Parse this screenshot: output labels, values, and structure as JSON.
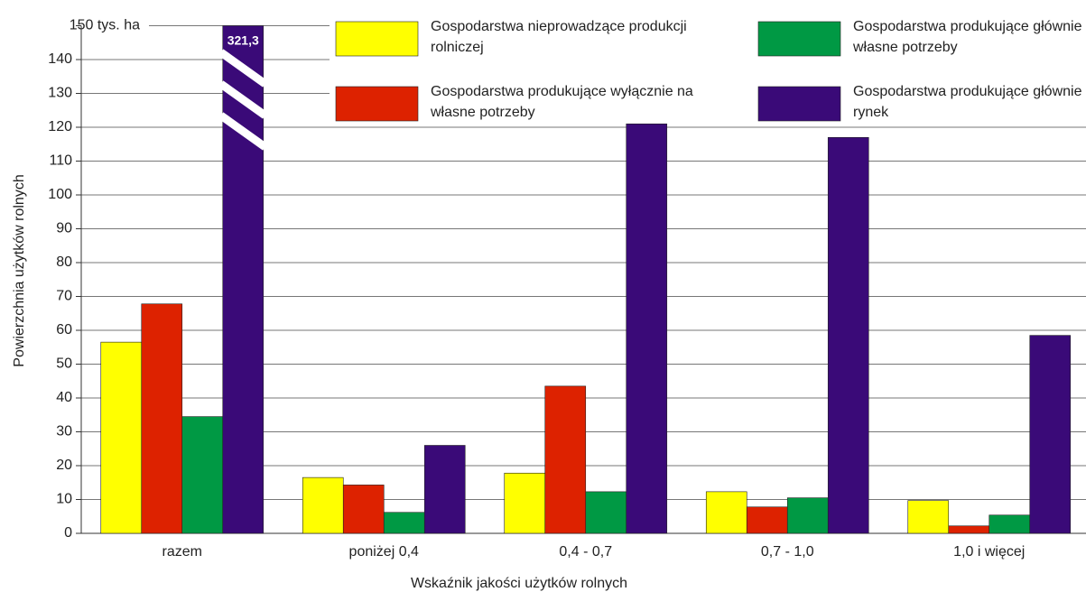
{
  "chart_data": {
    "type": "bar",
    "y_label": "Powierzchnia użytków rolnych",
    "x_label": "Wskaźnik jakości użytków rolnych",
    "categories": [
      "razem",
      "poniżej 0,4",
      "0,4 - 0,7",
      "0,7 - 1,0",
      "1,0 i więcej"
    ],
    "series": [
      {
        "name": "Gospodarstwa nieprowadzące produkcji rolniczej",
        "color": "#ffff00",
        "values": [
          56.5,
          16.5,
          17.8,
          12.3,
          9.7
        ]
      },
      {
        "name": "Gospodarstwa produkujące wyłącznie na własne potrzeby",
        "color": "#dd2200",
        "values": [
          67.8,
          14.3,
          43.5,
          7.8,
          2.2
        ]
      },
      {
        "name": "Gospodarstwa produkujące głównie na własne potrzeby",
        "color": "#009944",
        "values": [
          34.5,
          6.2,
          12.3,
          10.5,
          5.4
        ]
      },
      {
        "name": "Gospodarstwa produkujące głównie na rynek",
        "color": "#3a0a78",
        "values": [
          321.3,
          26,
          121,
          117,
          58.5
        ],
        "value_labels": [
          "321,3",
          null,
          null,
          null,
          null
        ]
      }
    ],
    "ylim": [
      0,
      150
    ],
    "yticks": [
      0,
      10,
      20,
      30,
      40,
      50,
      60,
      70,
      80,
      90,
      100,
      110,
      120,
      130,
      140,
      {
        "value": 150,
        "label": "150 tys. ha"
      }
    ],
    "grid": true
  }
}
